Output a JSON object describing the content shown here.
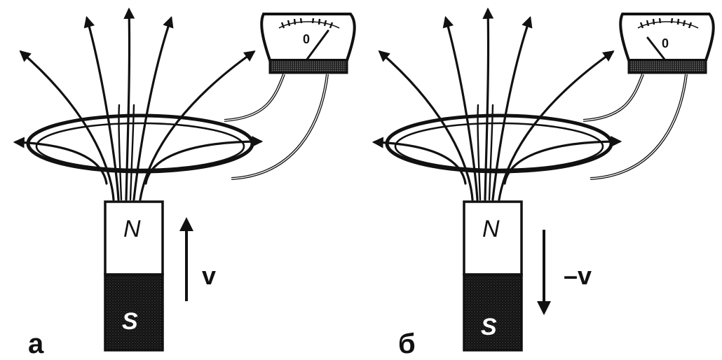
{
  "panels": [
    {
      "id": "a",
      "label": "а",
      "magnet": {
        "north_label": "N",
        "south_label": "S"
      },
      "meter": {
        "zero_label": "0"
      },
      "velocity": {
        "label": "v",
        "direction": "up"
      }
    },
    {
      "id": "b",
      "label": "б",
      "magnet": {
        "north_label": "N",
        "south_label": "S"
      },
      "meter": {
        "zero_label": "0"
      },
      "velocity": {
        "label": "–v",
        "direction": "down"
      }
    }
  ],
  "colors": {
    "ink": "#111111",
    "paper": "#ffffff"
  }
}
